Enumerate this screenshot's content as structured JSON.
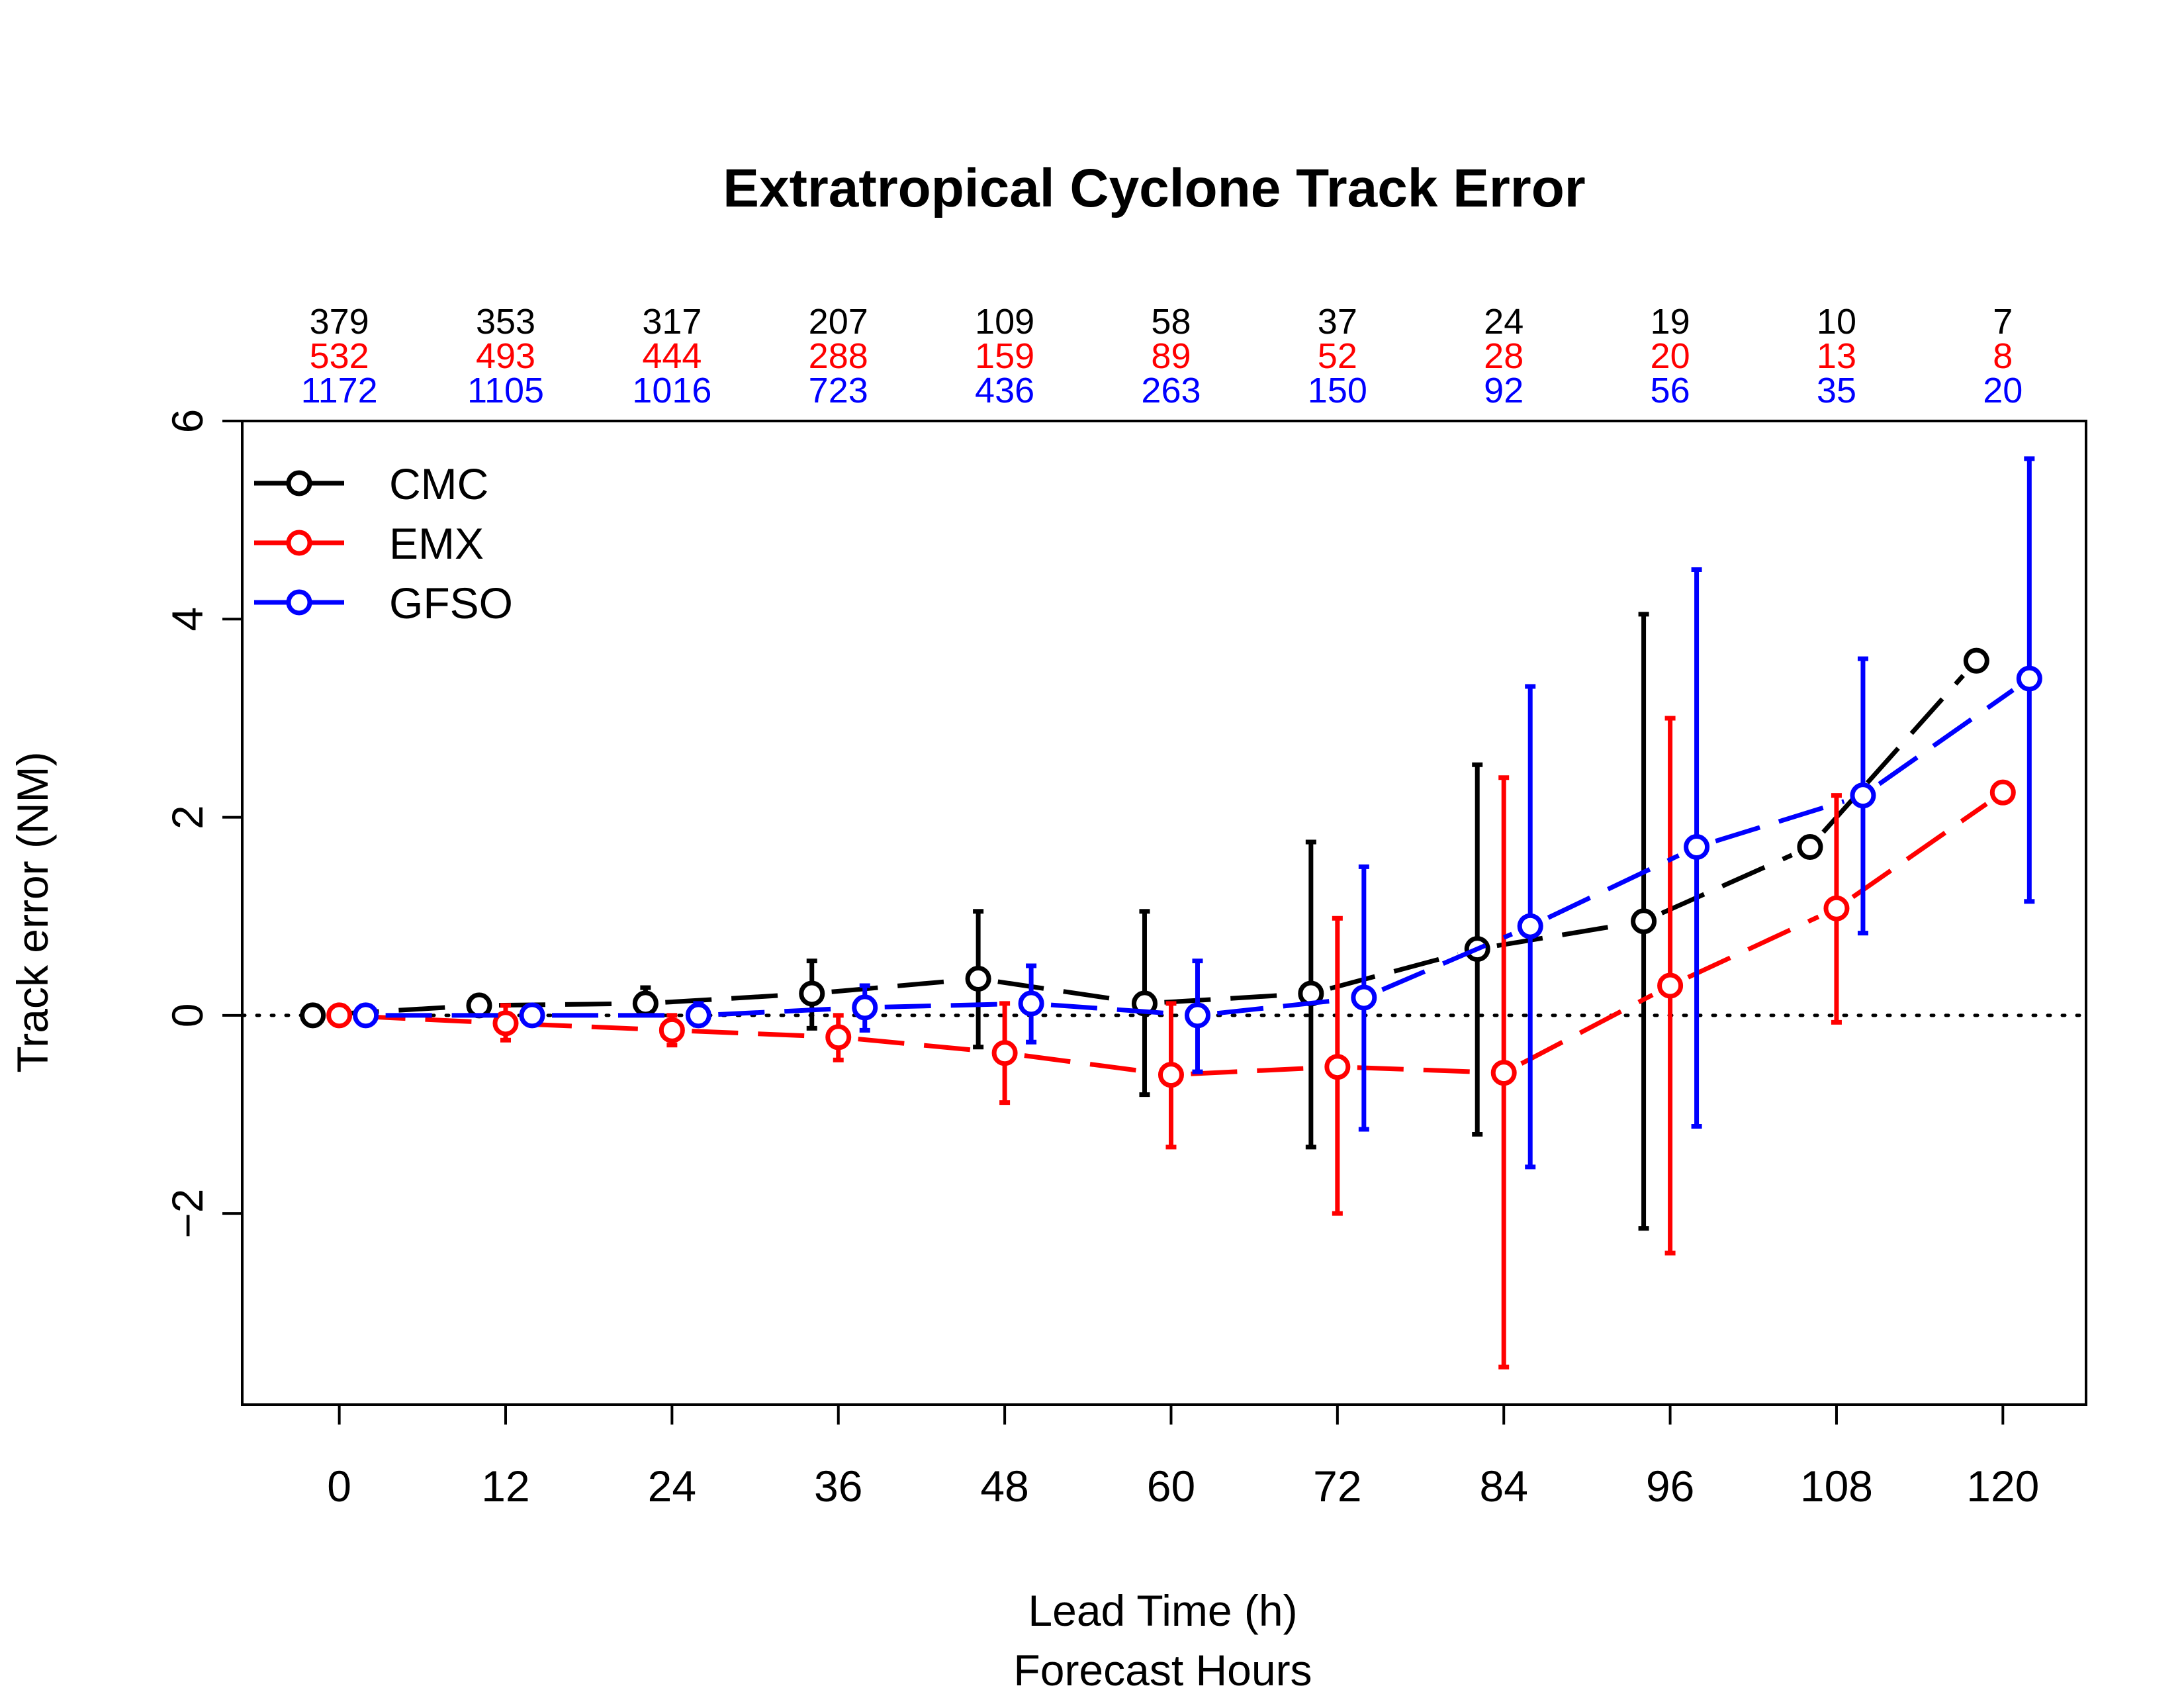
{
  "chart_data": {
    "type": "line",
    "title": "Extratropical Cyclone Track Error",
    "xlabel": "Lead Time (h)",
    "xlabel2": "Forecast Hours",
    "ylabel": "Track error (NM)",
    "x": [
      0,
      12,
      24,
      36,
      48,
      60,
      72,
      84,
      96,
      108,
      120
    ],
    "xlim": [
      -7,
      126
    ],
    "ylim": [
      -3.93,
      6
    ],
    "yticks": [
      -2,
      0,
      2,
      4,
      6
    ],
    "reference_line": 0,
    "legend_position": "top-left",
    "series": [
      {
        "name": "CMC",
        "color": "#000000",
        "values": [
          0.0,
          0.1,
          0.12,
          0.22,
          0.37,
          0.12,
          0.22,
          0.67,
          0.95,
          1.7,
          3.58
        ],
        "error_low": [
          null,
          null,
          0.08,
          -0.13,
          -0.32,
          -0.8,
          -1.33,
          -1.2,
          -2.15,
          null,
          null
        ],
        "error_high": [
          null,
          null,
          0.28,
          0.55,
          1.05,
          1.05,
          1.75,
          2.53,
          4.05,
          null,
          null
        ],
        "counts": [
          "379",
          "353",
          "317",
          "207",
          "109",
          "58",
          "37",
          "24",
          "19",
          "10",
          "7"
        ]
      },
      {
        "name": "EMX",
        "color": "#ff0000",
        "values": [
          0.0,
          -0.08,
          -0.15,
          -0.22,
          -0.38,
          -0.6,
          -0.52,
          -0.58,
          0.3,
          1.08,
          2.25
        ],
        "error_low": [
          null,
          -0.25,
          -0.3,
          -0.45,
          -0.88,
          -1.33,
          -2.0,
          -3.55,
          -2.4,
          -0.07,
          null
        ],
        "error_high": [
          null,
          0.1,
          0.0,
          0.0,
          0.12,
          0.12,
          0.98,
          2.4,
          3.0,
          2.22,
          null
        ],
        "counts": [
          "532",
          "493",
          "444",
          "288",
          "159",
          "89",
          "52",
          "28",
          "20",
          "13",
          "8"
        ]
      },
      {
        "name": "GFSO",
        "color": "#0000ff",
        "values": [
          0.0,
          0.0,
          0.0,
          0.08,
          0.12,
          0.0,
          0.18,
          0.9,
          1.7,
          2.22,
          3.4
        ],
        "error_low": [
          null,
          null,
          -0.1,
          -0.15,
          -0.27,
          -0.57,
          -1.15,
          -1.53,
          -1.12,
          0.83,
          1.15
        ],
        "error_high": [
          null,
          null,
          0.12,
          0.3,
          0.5,
          0.55,
          1.5,
          3.32,
          4.5,
          3.6,
          5.62
        ],
        "counts": [
          "1172",
          "1105",
          "1016",
          "723",
          "436",
          "263",
          "150",
          "92",
          "56",
          "35",
          "20"
        ]
      }
    ]
  }
}
